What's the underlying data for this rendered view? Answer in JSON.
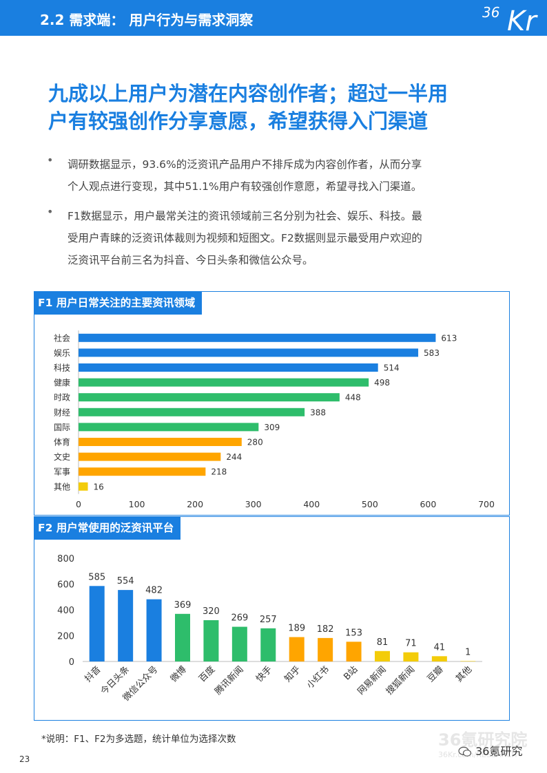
{
  "header": {
    "title": "2.2 需求端： 用户行为与需求洞察",
    "logo_num": "36",
    "logo_kr": "Kr"
  },
  "headline": {
    "line1": "九成以上用户为潜在内容创作者；超过一半用",
    "line2": "户有较强创作分享意愿，希望获得入门渠道"
  },
  "bullets": [
    {
      "marker": "•",
      "line1": "调研数据显示，93.6%的泛资讯产品用户不排斥成为内容创作者，从而分享",
      "line2": "个人观点进行变现，其中51.1%用户有较强创作意愿，希望寻找入门渠道。"
    },
    {
      "marker": "•",
      "line1": "F1数据显示，用户最常关注的资讯领域前三名分别为社会、娱乐、科技。最",
      "line2": "受用户青睐的泛资讯体裁则为视频和短图文。F2数据则显示最受用户欢迎的",
      "line3": "泛资讯平台前三名为抖音、今日头条和微信公众号。"
    }
  ],
  "colors": {
    "blue": "#1a7fe0",
    "green": "#2ebd6b",
    "orange": "#ffa500",
    "yellow": "#f3cc0a"
  },
  "chart_data": [
    {
      "type": "bar",
      "orientation": "horizontal",
      "title": "F1 用户日常关注的主要资讯领域",
      "categories": [
        "社会",
        "娱乐",
        "科技",
        "健康",
        "时政",
        "财经",
        "国际",
        "体育",
        "文史",
        "军事",
        "其他"
      ],
      "values": [
        613,
        583,
        514,
        498,
        448,
        388,
        309,
        280,
        244,
        218,
        16
      ],
      "bar_colors": [
        "#1a7fe0",
        "#1a7fe0",
        "#1a7fe0",
        "#2ebd6b",
        "#2ebd6b",
        "#2ebd6b",
        "#2ebd6b",
        "#ffa500",
        "#ffa500",
        "#ffa500",
        "#f3cc0a"
      ],
      "xlim": [
        0,
        700
      ],
      "xticks": [
        0,
        100,
        200,
        300,
        400,
        500,
        600,
        700
      ],
      "grid": false
    },
    {
      "type": "bar",
      "orientation": "vertical",
      "title": "F2 用户常使用的泛资讯平台",
      "categories": [
        "抖音",
        "今日头条",
        "微信公众号",
        "微博",
        "百度",
        "腾讯新闻",
        "快手",
        "知乎",
        "小红书",
        "B站",
        "网易新闻",
        "搜狐新闻",
        "豆瓣",
        "其他"
      ],
      "values": [
        585,
        554,
        482,
        369,
        320,
        269,
        257,
        189,
        182,
        153,
        81,
        71,
        41,
        1
      ],
      "bar_colors": [
        "#1a7fe0",
        "#1a7fe0",
        "#1a7fe0",
        "#2ebd6b",
        "#2ebd6b",
        "#2ebd6b",
        "#2ebd6b",
        "#ffa500",
        "#ffa500",
        "#ffa500",
        "#f3cc0a",
        "#f3cc0a",
        "#f3cc0a",
        "#f3cc0a"
      ],
      "ylim": [
        0,
        800
      ],
      "yticks": [
        0,
        200,
        400,
        600,
        800
      ],
      "grid": false
    }
  ],
  "footnote": "*说明：F1、F2为多选题，统计单位为选择次数",
  "page_number": "23",
  "watermark": {
    "title": "36氪研究院",
    "url": "36Kr.com/RESEARCH",
    "wechat": "36氪研究"
  }
}
